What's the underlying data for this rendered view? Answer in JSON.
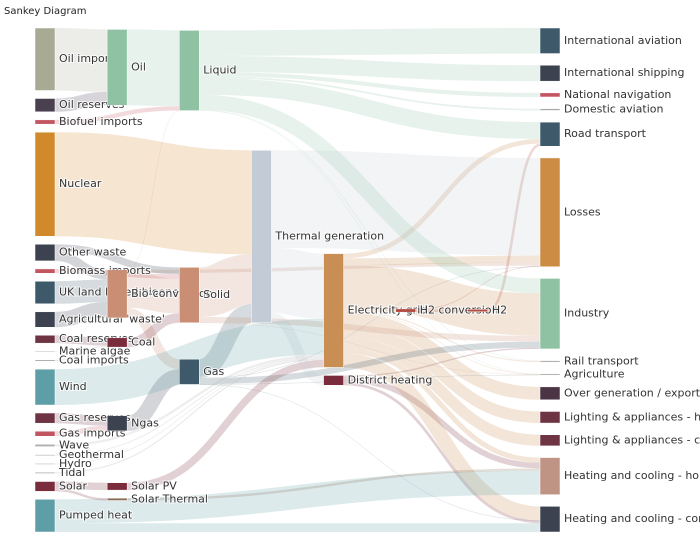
{
  "chart_data": {
    "type": "sankey",
    "title": "Sankey Diagram",
    "nodes": [
      {
        "label": "Oil imports",
        "color": "#a8aa94"
      },
      {
        "label": "Oil reserves",
        "color": "#4b4050"
      },
      {
        "label": "Biofuel imports",
        "color": "#c25560"
      },
      {
        "label": "Nuclear",
        "color": "#d08a2c"
      },
      {
        "label": "Other waste",
        "color": "#3c4250"
      },
      {
        "label": "Biomass imports",
        "color": "#c25560"
      },
      {
        "label": "UK land based bioenergy",
        "color": "#3e5a6a"
      },
      {
        "label": "Agricultural 'waste'",
        "color": "#3c4250"
      },
      {
        "label": "Coal reserves",
        "color": "#6e3444"
      },
      {
        "label": "Marine algae",
        "color": "#b8b8b8"
      },
      {
        "label": "Coal imports",
        "color": "#a8a8a8"
      },
      {
        "label": "Wind",
        "color": "#5e9ea6"
      },
      {
        "label": "Gas reserves",
        "color": "#6e3444"
      },
      {
        "label": "Gas imports",
        "color": "#c25560"
      },
      {
        "label": "Wave",
        "color": "#b0b0b0"
      },
      {
        "label": "Geothermal",
        "color": "#a0a0a0"
      },
      {
        "label": "Hydro",
        "color": "#b0b0b0"
      },
      {
        "label": "Tidal",
        "color": "#a0a0a0"
      },
      {
        "label": "Solar",
        "color": "#7a2c3c"
      },
      {
        "label": "Pumped heat",
        "color": "#5e9ea6"
      },
      {
        "label": "Oil",
        "color": "#8fc2a2"
      },
      {
        "label": "Bio-conversion",
        "color": "#c98e74"
      },
      {
        "label": "Coal",
        "color": "#7a2c3c"
      },
      {
        "label": "Ngas",
        "color": "#3c4250"
      },
      {
        "label": "Solar PV",
        "color": "#7a2c3c"
      },
      {
        "label": "Solar Thermal",
        "color": "#8a6c58"
      },
      {
        "label": "Liquid",
        "color": "#8fc2a2"
      },
      {
        "label": "Solid",
        "color": "#c98e74"
      },
      {
        "label": "Gas",
        "color": "#3e5a6a"
      },
      {
        "label": "Thermal generation",
        "color": "#c3ccd6"
      },
      {
        "label": "Electricity grid",
        "color": "#c98e54"
      },
      {
        "label": "District heating",
        "color": "#7a2c3c"
      },
      {
        "label": "H2 conversion",
        "color": "#b04c42"
      },
      {
        "label": "H2",
        "color": "#b04c42"
      },
      {
        "label": "International aviation",
        "color": "#3e5a6a"
      },
      {
        "label": "International shipping",
        "color": "#3c4250"
      },
      {
        "label": "National navigation",
        "color": "#c25560"
      },
      {
        "label": "Domestic aviation",
        "color": "#a8a8a8"
      },
      {
        "label": "Road transport",
        "color": "#3e5a6a"
      },
      {
        "label": "Losses",
        "color": "#cc8c44"
      },
      {
        "label": "Industry",
        "color": "#8fc2a2"
      },
      {
        "label": "Rail transport",
        "color": "#a8a8a8"
      },
      {
        "label": "Agriculture",
        "color": "#a8a8a8"
      },
      {
        "label": "Over generation / exports",
        "color": "#4b3444"
      },
      {
        "label": "Lighting & appliances - homes",
        "color": "#6e3444"
      },
      {
        "label": "Lighting & appliances - commercial",
        "color": "#6e3444"
      },
      {
        "label": "Heating and cooling - homes",
        "color": "#c09484"
      },
      {
        "label": "Heating and cooling - commercial",
        "color": "#3c4250"
      }
    ],
    "links": [
      {
        "source": 7,
        "target": 21,
        "value": 124.729
      },
      {
        "source": 21,
        "target": 26,
        "value": 0.597
      },
      {
        "source": 21,
        "target": 39,
        "value": 26.862
      },
      {
        "source": 21,
        "target": 27,
        "value": 280.322
      },
      {
        "source": 21,
        "target": 28,
        "value": 81.144
      },
      {
        "source": 2,
        "target": 26,
        "value": 35
      },
      {
        "source": 5,
        "target": 27,
        "value": 35
      },
      {
        "source": 10,
        "target": 22,
        "value": 11.606
      },
      {
        "source": 8,
        "target": 22,
        "value": 63.965
      },
      {
        "source": 22,
        "target": 27,
        "value": 75.571
      },
      {
        "source": 31,
        "target": 40,
        "value": 10.639
      },
      {
        "source": 31,
        "target": 47,
        "value": 22.505
      },
      {
        "source": 31,
        "target": 46,
        "value": 46.184
      },
      {
        "source": 30,
        "target": 43,
        "value": 104.453
      },
      {
        "source": 30,
        "target": 47,
        "value": 113.726
      },
      {
        "source": 30,
        "target": 32,
        "value": 27.14
      },
      {
        "source": 30,
        "target": 40,
        "value": 342.165
      },
      {
        "source": 30,
        "target": 38,
        "value": 37.797
      },
      {
        "source": 30,
        "target": 42,
        "value": 4.412
      },
      {
        "source": 30,
        "target": 46,
        "value": 40.858
      },
      {
        "source": 30,
        "target": 39,
        "value": 56.691
      },
      {
        "source": 30,
        "target": 41,
        "value": 7.863
      },
      {
        "source": 30,
        "target": 45,
        "value": 90.008
      },
      {
        "source": 30,
        "target": 44,
        "value": 93.494
      },
      {
        "source": 13,
        "target": 23,
        "value": 40.719
      },
      {
        "source": 12,
        "target": 23,
        "value": 82.233
      },
      {
        "source": 28,
        "target": 47,
        "value": 0.129
      },
      {
        "source": 28,
        "target": 39,
        "value": 1.401
      },
      {
        "source": 28,
        "target": 29,
        "value": 151.891
      },
      {
        "source": 28,
        "target": 42,
        "value": 2.096
      },
      {
        "source": 28,
        "target": 40,
        "value": 48.58
      },
      {
        "source": 15,
        "target": 30,
        "value": 7.013
      },
      {
        "source": 32,
        "target": 33,
        "value": 20.897
      },
      {
        "source": 32,
        "target": 39,
        "value": 6.242
      },
      {
        "source": 33,
        "target": 38,
        "value": 20.897
      },
      {
        "source": 16,
        "target": 30,
        "value": 6.995
      },
      {
        "source": 26,
        "target": 40,
        "value": 121.066
      },
      {
        "source": 26,
        "target": 35,
        "value": 128.69
      },
      {
        "source": 26,
        "target": 38,
        "value": 135.835
      },
      {
        "source": 26,
        "target": 37,
        "value": 14.458
      },
      {
        "source": 26,
        "target": 34,
        "value": 206.267
      },
      {
        "source": 26,
        "target": 42,
        "value": 3.64
      },
      {
        "source": 26,
        "target": 36,
        "value": 33.218
      },
      {
        "source": 26,
        "target": 41,
        "value": 4.413
      },
      {
        "source": 9,
        "target": 21,
        "value": 4.375
      },
      {
        "source": 23,
        "target": 28,
        "value": 122.952
      },
      {
        "source": 3,
        "target": 29,
        "value": 839.978
      },
      {
        "source": 0,
        "target": 20,
        "value": 504.287
      },
      {
        "source": 1,
        "target": 20,
        "value": 107.703
      },
      {
        "source": 20,
        "target": 26,
        "value": 611.99
      },
      {
        "source": 4,
        "target": 27,
        "value": 56.587
      },
      {
        "source": 4,
        "target": 21,
        "value": 77.81
      },
      {
        "source": 19,
        "target": 46,
        "value": 193.026
      },
      {
        "source": 19,
        "target": 47,
        "value": 70.672
      },
      {
        "source": 24,
        "target": 30,
        "value": 59.901
      },
      {
        "source": 25,
        "target": 46,
        "value": 19.263
      },
      {
        "source": 18,
        "target": 25,
        "value": 19.263
      },
      {
        "source": 18,
        "target": 24,
        "value": 59.901
      },
      {
        "source": 27,
        "target": 42,
        "value": 0.882
      },
      {
        "source": 27,
        "target": 29,
        "value": 400.12
      },
      {
        "source": 27,
        "target": 40,
        "value": 46.477
      },
      {
        "source": 29,
        "target": 30,
        "value": 525.531
      },
      {
        "source": 29,
        "target": 39,
        "value": 787.129
      },
      {
        "source": 29,
        "target": 31,
        "value": 79.329
      },
      {
        "source": 17,
        "target": 30,
        "value": 9.452
      },
      {
        "source": 6,
        "target": 21,
        "value": 182.01
      },
      {
        "source": 14,
        "target": 30,
        "value": 19.013
      },
      {
        "source": 11,
        "target": 30,
        "value": 289.366
      }
    ]
  }
}
